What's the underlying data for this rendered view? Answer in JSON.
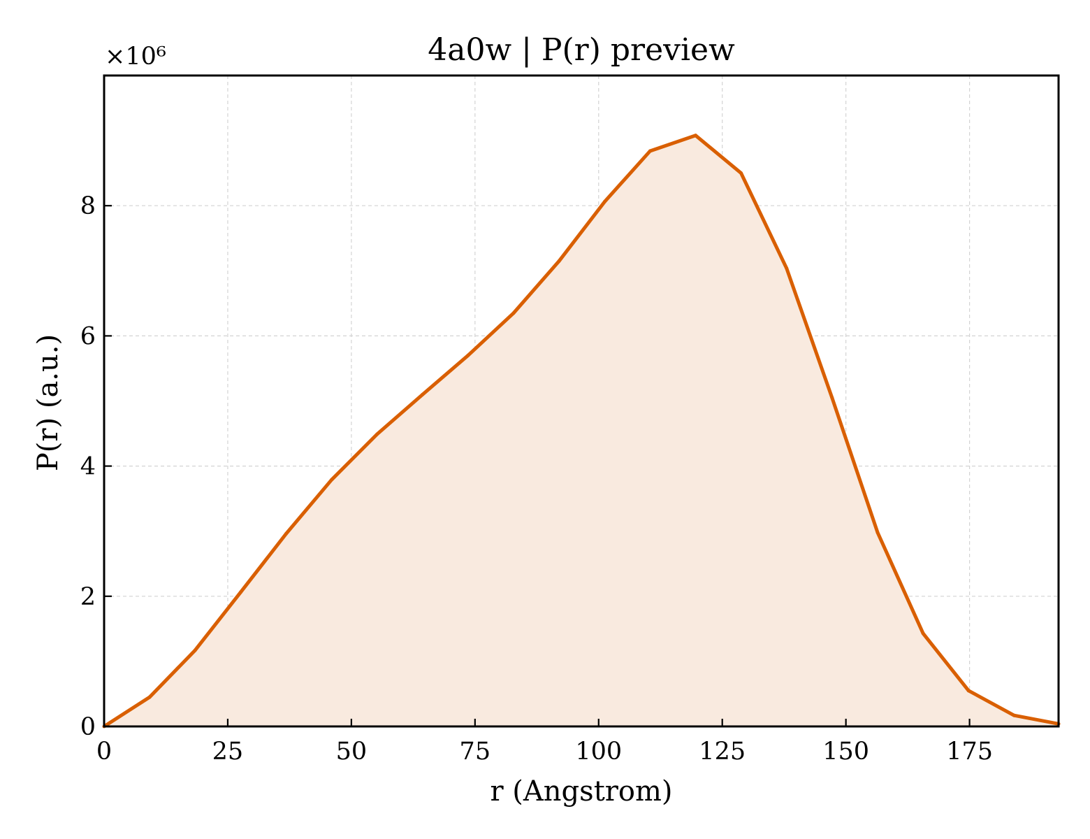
{
  "chart_data": {
    "type": "area",
    "title": "4a0w | P(r) preview",
    "xlabel": "r (Angstrom)",
    "ylabel": "P(r) (a.u.)",
    "y_offset_label": "×10⁶",
    "xlim": [
      0,
      193
    ],
    "ylim": [
      0,
      10
    ],
    "x_ticks": [
      "0",
      "25",
      "50",
      "75",
      "100",
      "125",
      "150",
      "175"
    ],
    "y_ticks": [
      "0",
      "2",
      "4",
      "6",
      "8"
    ],
    "grid": true,
    "legend": "none",
    "colors": {
      "line": "#d95f02",
      "fill": "#f9eadf"
    },
    "series": [
      {
        "x": [
          0,
          9.2,
          18.4,
          27.6,
          36.8,
          46.0,
          55.2,
          64.4,
          73.6,
          82.8,
          92.0,
          101.2,
          110.4,
          119.6,
          128.8,
          138.0,
          147.2,
          156.4,
          165.6,
          174.8,
          184.0,
          193.0
        ],
        "y": [
          0.0,
          0.45,
          1.17,
          2.06,
          2.96,
          3.79,
          4.49,
          5.1,
          5.7,
          6.35,
          7.15,
          8.06,
          8.84,
          9.08,
          8.5,
          7.04,
          5.05,
          2.98,
          1.43,
          0.55,
          0.17,
          0.04
        ]
      }
    ]
  }
}
